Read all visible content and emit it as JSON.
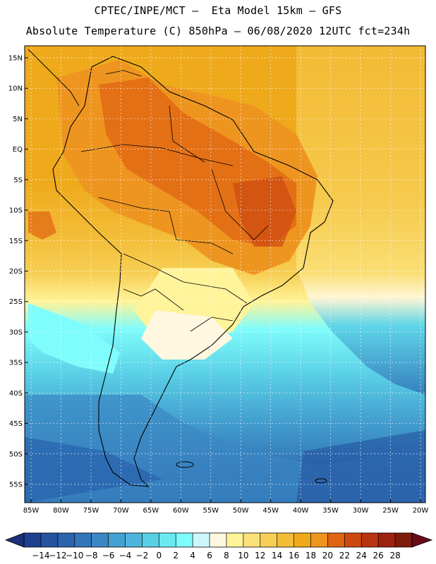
{
  "header": {
    "line1": "CPTEC/INPE/MCT —  Eta Model 15km — GFS",
    "line2": "Absolute Temperature (C) 850hPa — 06/08/2020 12UTC fct=234h"
  },
  "map": {
    "lat_labels": [
      "15N",
      "10N",
      "5N",
      "EQ",
      "5S",
      "10S",
      "15S",
      "20S",
      "25S",
      "30S",
      "35S",
      "40S",
      "45S",
      "50S",
      "55S"
    ],
    "lon_labels": [
      "85W",
      "80W",
      "75W",
      "70W",
      "65W",
      "60W",
      "55W",
      "50W",
      "45W",
      "40W",
      "35W",
      "30W",
      "25W",
      "20W"
    ],
    "lat_values": [
      15,
      10,
      5,
      0,
      -5,
      -10,
      -15,
      -20,
      -25,
      -30,
      -35,
      -40,
      -45,
      -50,
      -55
    ],
    "lon_values": [
      -85,
      -80,
      -75,
      -70,
      -65,
      -60,
      -55,
      -50,
      -45,
      -40,
      -35,
      -30,
      -25,
      -20
    ]
  },
  "colorbar": {
    "labels": [
      "-14",
      "-12",
      "-10",
      "-8",
      "-6",
      "-4",
      "-2",
      "0",
      "2",
      "4",
      "6",
      "8",
      "10",
      "12",
      "14",
      "16",
      "18",
      "20",
      "22",
      "24",
      "26",
      "28"
    ],
    "colors": [
      "#1f3f8f",
      "#2553a0",
      "#2a64ad",
      "#3275b8",
      "#3a87c3",
      "#44a0d0",
      "#4eb6dc",
      "#59cfe6",
      "#6ae9f0",
      "#7ffcfc",
      "#cdf6fc",
      "#fff7df",
      "#fff49a",
      "#fbe17a",
      "#f7cf55",
      "#f3bd38",
      "#efaa1c",
      "#ee9520",
      "#e06412",
      "#cc4a10",
      "#b83410",
      "#9c220e",
      "#7e1a0c"
    ],
    "under_color": "#1d2f7a",
    "over_color": "#6a0b1a"
  }
}
